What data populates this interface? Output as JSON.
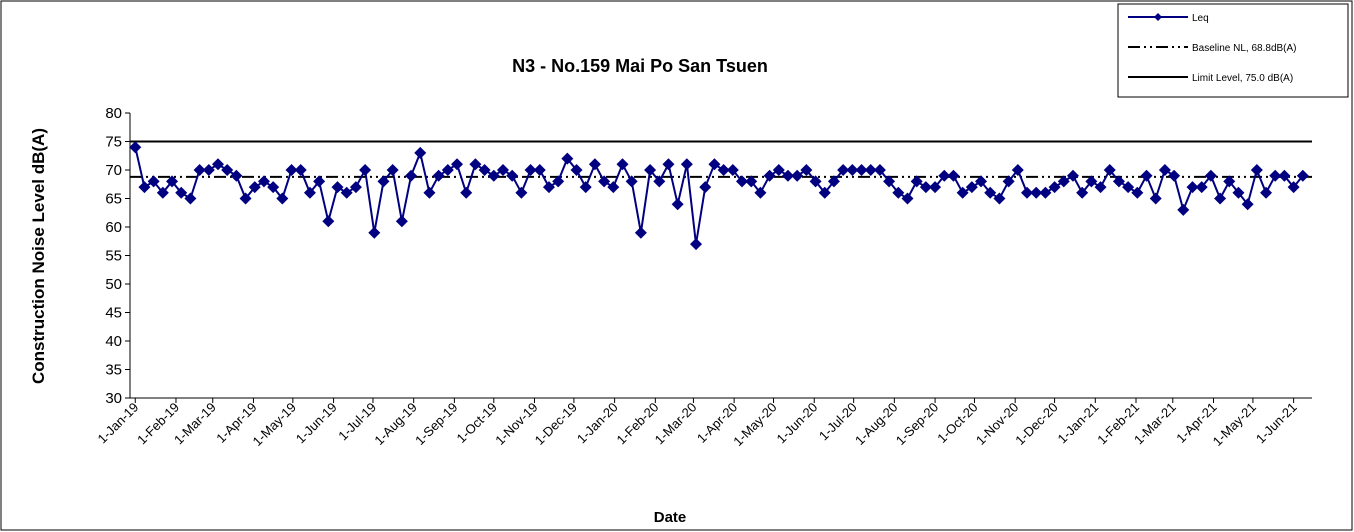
{
  "chart_data": {
    "type": "line",
    "title": "N3 - No.159 Mai Po San Tsuen",
    "x_label": "Date",
    "y_label": "Construction Noise Level  dB(A)",
    "x": [
      "2019-01-01",
      "2019-01-08",
      "2019-01-15",
      "2019-01-22",
      "2019-01-29",
      "2019-02-05",
      "2019-02-12",
      "2019-02-19",
      "2019-02-26",
      "2019-03-05",
      "2019-03-12",
      "2019-03-19",
      "2019-03-26",
      "2019-04-02",
      "2019-04-09",
      "2019-04-16",
      "2019-04-23",
      "2019-04-30",
      "2019-05-07",
      "2019-05-14",
      "2019-05-21",
      "2019-05-28",
      "2019-06-04",
      "2019-06-11",
      "2019-06-18",
      "2019-06-25",
      "2019-07-02",
      "2019-07-09",
      "2019-07-16",
      "2019-07-23",
      "2019-07-30",
      "2019-08-06",
      "2019-08-13",
      "2019-08-20",
      "2019-08-27",
      "2019-09-03",
      "2019-09-10",
      "2019-09-17",
      "2019-09-24",
      "2019-10-01",
      "2019-10-08",
      "2019-10-15",
      "2019-10-22",
      "2019-10-29",
      "2019-11-05",
      "2019-11-12",
      "2019-11-19",
      "2019-11-26",
      "2019-12-03",
      "2019-12-10",
      "2019-12-17",
      "2019-12-24",
      "2019-12-31",
      "2020-01-07",
      "2020-01-14",
      "2020-01-21",
      "2020-01-28",
      "2020-02-04",
      "2020-02-11",
      "2020-02-18",
      "2020-02-25",
      "2020-03-03",
      "2020-03-10",
      "2020-03-17",
      "2020-03-24",
      "2020-03-31",
      "2020-04-07",
      "2020-04-14",
      "2020-04-21",
      "2020-04-28",
      "2020-05-05",
      "2020-05-12",
      "2020-05-19",
      "2020-05-26",
      "2020-06-02",
      "2020-06-09",
      "2020-06-16",
      "2020-06-23",
      "2020-06-30",
      "2020-07-07",
      "2020-07-14",
      "2020-07-21",
      "2020-07-28",
      "2020-08-04",
      "2020-08-11",
      "2020-08-18",
      "2020-08-25",
      "2020-09-01",
      "2020-09-08",
      "2020-09-15",
      "2020-09-22",
      "2020-09-29",
      "2020-10-06",
      "2020-10-13",
      "2020-10-20",
      "2020-10-27",
      "2020-11-03",
      "2020-11-10",
      "2020-11-17",
      "2020-11-24",
      "2020-12-01",
      "2020-12-08",
      "2020-12-15",
      "2020-12-22",
      "2020-12-29",
      "2021-01-05",
      "2021-01-12",
      "2021-01-19",
      "2021-01-26",
      "2021-02-02",
      "2021-02-09",
      "2021-02-16",
      "2021-02-23",
      "2021-03-02",
      "2021-03-09",
      "2021-03-16",
      "2021-03-23",
      "2021-03-30",
      "2021-04-06",
      "2021-04-13",
      "2021-04-20",
      "2021-04-27",
      "2021-05-04",
      "2021-05-11",
      "2021-05-18",
      "2021-05-25",
      "2021-06-01",
      "2021-06-08"
    ],
    "series": [
      {
        "name": "Leq",
        "color": "#000080",
        "values": [
          74,
          67,
          68,
          66,
          68,
          66,
          65,
          70,
          70,
          71,
          70,
          69,
          65,
          67,
          68,
          67,
          65,
          70,
          70,
          66,
          68,
          61,
          67,
          66,
          67,
          70,
          59,
          68,
          70,
          61,
          69,
          73,
          66,
          69,
          70,
          71,
          66,
          71,
          70,
          69,
          70,
          69,
          66,
          70,
          70,
          67,
          68,
          72,
          70,
          67,
          71,
          68,
          67,
          71,
          68,
          59,
          70,
          68,
          71,
          64,
          71,
          57,
          67,
          71,
          70,
          70,
          68,
          68,
          66,
          69,
          70,
          69,
          69,
          70,
          68,
          66,
          68,
          70,
          70,
          70,
          70,
          70,
          68,
          66,
          65,
          68,
          67,
          67,
          69,
          69,
          66,
          67,
          68,
          66,
          65,
          68,
          70,
          66,
          66,
          66,
          67,
          68,
          69,
          66,
          68,
          67,
          70,
          68,
          67,
          66,
          69,
          65,
          70,
          69,
          63,
          67,
          67,
          69,
          65,
          68,
          66,
          64,
          70,
          66,
          69,
          69,
          67,
          69
        ]
      }
    ],
    "reference_lines": [
      {
        "name": "Baseline NL, 68.8dB(A)",
        "value": 68.8,
        "style": "dashdot",
        "color": "#000000"
      },
      {
        "name": "Limit Level, 75.0 dB(A)",
        "value": 75,
        "style": "solid",
        "color": "#000000"
      }
    ],
    "xlim": [
      "2018-12-28",
      "2021-06-15"
    ],
    "xticks": [
      {
        "value": "2019-01-01",
        "label": "1-Jan-19"
      },
      {
        "value": "2019-02-01",
        "label": "1-Feb-19"
      },
      {
        "value": "2019-03-01",
        "label": "1-Mar-19"
      },
      {
        "value": "2019-04-01",
        "label": "1-Apr-19"
      },
      {
        "value": "2019-05-01",
        "label": "1-May-19"
      },
      {
        "value": "2019-06-01",
        "label": "1-Jun-19"
      },
      {
        "value": "2019-07-01",
        "label": "1-Jul-19"
      },
      {
        "value": "2019-08-01",
        "label": "1-Aug-19"
      },
      {
        "value": "2019-09-01",
        "label": "1-Sep-19"
      },
      {
        "value": "2019-10-01",
        "label": "1-Oct-19"
      },
      {
        "value": "2019-11-01",
        "label": "1-Nov-19"
      },
      {
        "value": "2019-12-01",
        "label": "1-Dec-19"
      },
      {
        "value": "2020-01-01",
        "label": "1-Jan-20"
      },
      {
        "value": "2020-02-01",
        "label": "1-Feb-20"
      },
      {
        "value": "2020-03-01",
        "label": "1-Mar-20"
      },
      {
        "value": "2020-04-01",
        "label": "1-Apr-20"
      },
      {
        "value": "2020-05-01",
        "label": "1-May-20"
      },
      {
        "value": "2020-06-01",
        "label": "1-Jun-20"
      },
      {
        "value": "2020-07-01",
        "label": "1-Jul-20"
      },
      {
        "value": "2020-08-01",
        "label": "1-Aug-20"
      },
      {
        "value": "2020-09-01",
        "label": "1-Sep-20"
      },
      {
        "value": "2020-10-01",
        "label": "1-Oct-20"
      },
      {
        "value": "2020-11-01",
        "label": "1-Nov-20"
      },
      {
        "value": "2020-12-01",
        "label": "1-Dec-20"
      },
      {
        "value": "2021-01-01",
        "label": "1-Jan-21"
      },
      {
        "value": "2021-02-01",
        "label": "1-Feb-21"
      },
      {
        "value": "2021-03-01",
        "label": "1-Mar-21"
      },
      {
        "value": "2021-04-01",
        "label": "1-Apr-21"
      },
      {
        "value": "2021-05-01",
        "label": "1-May-21"
      },
      {
        "value": "2021-06-01",
        "label": "1-Jun-21"
      }
    ],
    "ylim": [
      30,
      80
    ],
    "yticks": [
      30,
      35,
      40,
      45,
      50,
      55,
      60,
      65,
      70,
      75,
      80
    ],
    "grid": false,
    "legend": "top-right"
  }
}
